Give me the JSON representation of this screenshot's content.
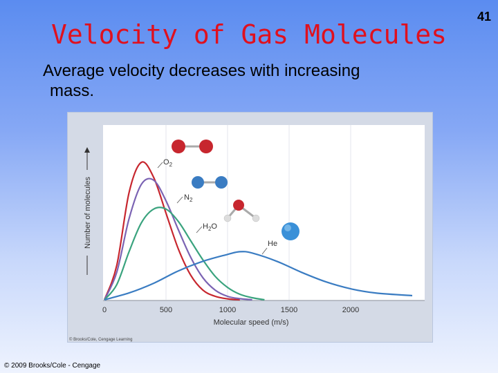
{
  "slide": {
    "title": "Velocity of Gas Molecules",
    "number": "41",
    "bullet_line1": "Average velocity decreases with increasing",
    "bullet_line2": "mass.",
    "copyright": "© 2009 Brooks/Cole - Cengage",
    "figure_credit": "© Brooks/Cole, Cengage Learning"
  },
  "colors": {
    "title": "#e0101e",
    "o2": "#c7262e",
    "n2": "#7b63b3",
    "h2o": "#3aa37e",
    "he": "#3a7cc2",
    "frame": "#d4dae6"
  },
  "chart_data": {
    "type": "line",
    "title": "",
    "xlabel": "Molecular speed (m/s)",
    "ylabel": "Number of molecules",
    "xlim": [
      0,
      2500
    ],
    "ylim": [
      0,
      1
    ],
    "xticks": [
      0,
      500,
      1000,
      1500,
      2000
    ],
    "xtick_labels": [
      "0",
      "500",
      "1000",
      "1500",
      "2000"
    ],
    "grid": "vertical",
    "series": [
      {
        "name": "O2",
        "label_main": "O",
        "label_sub": "2",
        "color": "#c7262e",
        "x": [
          0,
          100,
          200,
          300,
          400,
          500,
          600,
          700,
          800,
          900,
          1000,
          1100
        ],
        "y": [
          0,
          0.25,
          0.78,
          1.0,
          0.89,
          0.63,
          0.37,
          0.18,
          0.07,
          0.025,
          0.007,
          0
        ]
      },
      {
        "name": "N2",
        "label_main": "N",
        "label_sub": "2",
        "color": "#7b63b3",
        "x": [
          0,
          100,
          200,
          300,
          400,
          500,
          600,
          700,
          800,
          900,
          1000,
          1100,
          1200
        ],
        "y": [
          0,
          0.2,
          0.59,
          0.84,
          0.87,
          0.72,
          0.51,
          0.31,
          0.16,
          0.07,
          0.025,
          0.008,
          0
        ]
      },
      {
        "name": "H2O",
        "label_main": "H",
        "label_sub": "2",
        "label_tail": "O",
        "color": "#3aa37e",
        "x": [
          0,
          100,
          200,
          300,
          400,
          500,
          600,
          700,
          800,
          900,
          1000,
          1100,
          1200,
          1300
        ],
        "y": [
          0,
          0.11,
          0.35,
          0.56,
          0.66,
          0.66,
          0.57,
          0.43,
          0.29,
          0.17,
          0.09,
          0.04,
          0.015,
          0
        ]
      },
      {
        "name": "He",
        "label_main": "He",
        "color": "#3a7cc2",
        "x": [
          0,
          200,
          400,
          600,
          800,
          1000,
          1100,
          1200,
          1400,
          1600,
          1800,
          2000,
          2200,
          2500
        ],
        "y": [
          0,
          0.05,
          0.12,
          0.21,
          0.28,
          0.33,
          0.35,
          0.34,
          0.28,
          0.2,
          0.13,
          0.08,
          0.05,
          0.03
        ]
      }
    ]
  }
}
